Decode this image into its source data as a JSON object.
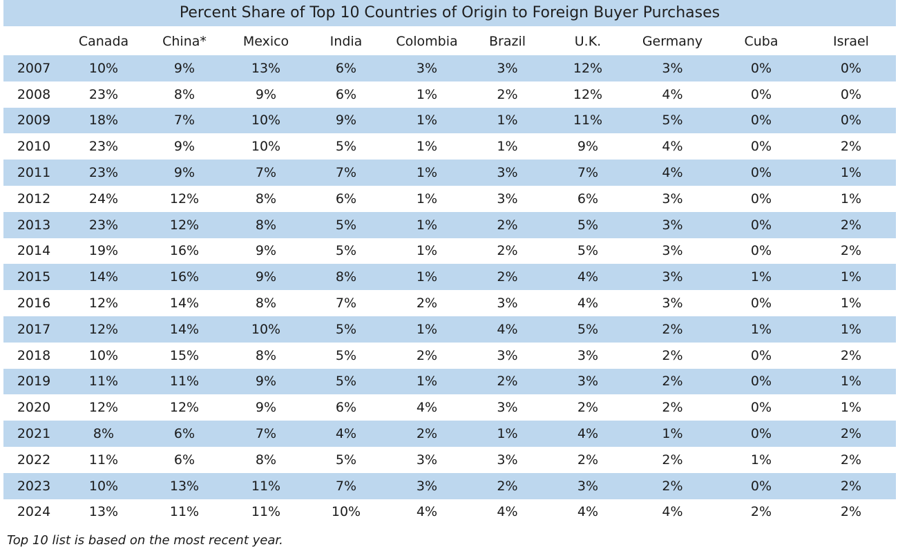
{
  "colors": {
    "band": "#bdd7ee",
    "text": "#1a1a1a",
    "background": "#ffffff"
  },
  "chart_data": {
    "type": "table",
    "title": "Percent Share of Top 10 Countries of Origin to Foreign Buyer Purchases",
    "columns": [
      "",
      "Canada",
      "China*",
      "Mexico",
      "India",
      "Colombia",
      "Brazil",
      "U.K.",
      "Germany",
      "Cuba",
      "Israel"
    ],
    "rows": [
      [
        "2007",
        "10%",
        "9%",
        "13%",
        "6%",
        "3%",
        "3%",
        "12%",
        "3%",
        "0%",
        "0%"
      ],
      [
        "2008",
        "23%",
        "8%",
        "9%",
        "6%",
        "1%",
        "2%",
        "12%",
        "4%",
        "0%",
        "0%"
      ],
      [
        "2009",
        "18%",
        "7%",
        "10%",
        "9%",
        "1%",
        "1%",
        "11%",
        "5%",
        "0%",
        "0%"
      ],
      [
        "2010",
        "23%",
        "9%",
        "10%",
        "5%",
        "1%",
        "1%",
        "9%",
        "4%",
        "0%",
        "2%"
      ],
      [
        "2011",
        "23%",
        "9%",
        "7%",
        "7%",
        "1%",
        "3%",
        "7%",
        "4%",
        "0%",
        "1%"
      ],
      [
        "2012",
        "24%",
        "12%",
        "8%",
        "6%",
        "1%",
        "3%",
        "6%",
        "3%",
        "0%",
        "1%"
      ],
      [
        "2013",
        "23%",
        "12%",
        "8%",
        "5%",
        "1%",
        "2%",
        "5%",
        "3%",
        "0%",
        "2%"
      ],
      [
        "2014",
        "19%",
        "16%",
        "9%",
        "5%",
        "1%",
        "2%",
        "5%",
        "3%",
        "0%",
        "2%"
      ],
      [
        "2015",
        "14%",
        "16%",
        "9%",
        "8%",
        "1%",
        "2%",
        "4%",
        "3%",
        "1%",
        "1%"
      ],
      [
        "2016",
        "12%",
        "14%",
        "8%",
        "7%",
        "2%",
        "3%",
        "4%",
        "3%",
        "0%",
        "1%"
      ],
      [
        "2017",
        "12%",
        "14%",
        "10%",
        "5%",
        "1%",
        "4%",
        "5%",
        "2%",
        "1%",
        "1%"
      ],
      [
        "2018",
        "10%",
        "15%",
        "8%",
        "5%",
        "2%",
        "3%",
        "3%",
        "2%",
        "0%",
        "2%"
      ],
      [
        "2019",
        "11%",
        "11%",
        "9%",
        "5%",
        "1%",
        "2%",
        "3%",
        "2%",
        "0%",
        "1%"
      ],
      [
        "2020",
        "12%",
        "12%",
        "9%",
        "6%",
        "4%",
        "3%",
        "2%",
        "2%",
        "0%",
        "1%"
      ],
      [
        "2021",
        "8%",
        "6%",
        "7%",
        "4%",
        "2%",
        "1%",
        "4%",
        "1%",
        "0%",
        "2%"
      ],
      [
        "2022",
        "11%",
        "6%",
        "8%",
        "5%",
        "3%",
        "3%",
        "2%",
        "2%",
        "1%",
        "2%"
      ],
      [
        "2023",
        "10%",
        "13%",
        "11%",
        "7%",
        "3%",
        "2%",
        "3%",
        "2%",
        "0%",
        "2%"
      ],
      [
        "2024",
        "13%",
        "11%",
        "11%",
        "10%",
        "4%",
        "4%",
        "4%",
        "4%",
        "2%",
        "2%"
      ]
    ],
    "note": "Top 10 list is based on the most recent year."
  }
}
